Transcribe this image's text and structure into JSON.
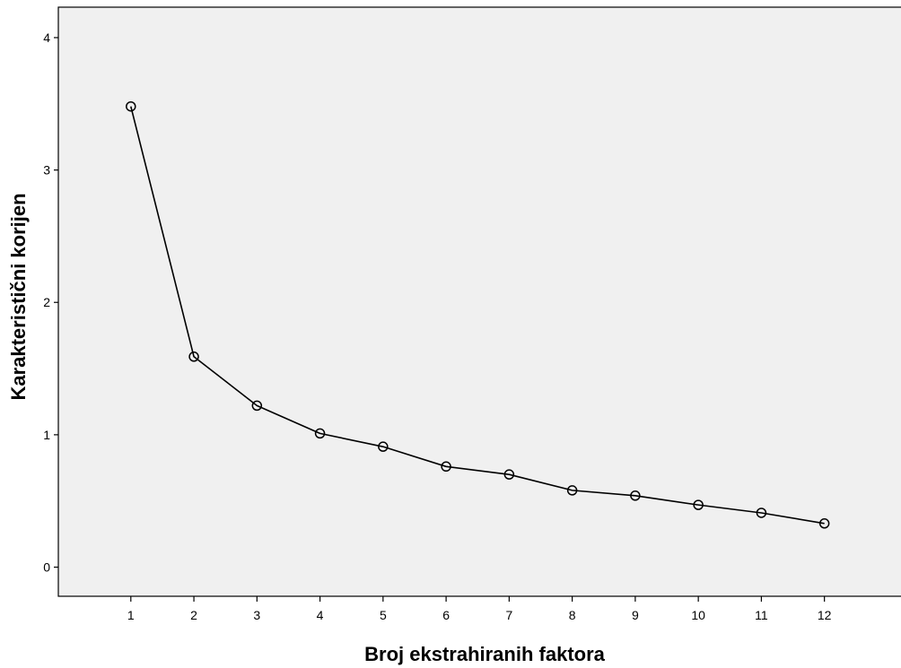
{
  "chart_data": {
    "type": "line",
    "title": "",
    "xlabel": "Broj ekstrahiranih faktora",
    "ylabel": "Karakteristični korijen",
    "x": [
      1,
      2,
      3,
      4,
      5,
      6,
      7,
      8,
      9,
      10,
      11,
      12
    ],
    "x_tick_labels": [
      "1",
      "2",
      "3",
      "4",
      "5",
      "6",
      "7",
      "8",
      "9",
      "10",
      "11",
      "12"
    ],
    "y_tick_labels": [
      "0",
      "1",
      "2",
      "3",
      "4"
    ],
    "xlim": [
      -0.15,
      13.3
    ],
    "ylim": [
      -0.22,
      4.23
    ],
    "grid": false,
    "series": [
      {
        "values": [
          3.48,
          1.59,
          1.22,
          1.01,
          0.91,
          0.76,
          0.7,
          0.58,
          0.54,
          0.47,
          0.41,
          0.33
        ],
        "marker": "open-circle"
      }
    ],
    "colors": {
      "plot_background": "#f0f0f0",
      "line": "#000000",
      "axis": "#000000"
    }
  }
}
